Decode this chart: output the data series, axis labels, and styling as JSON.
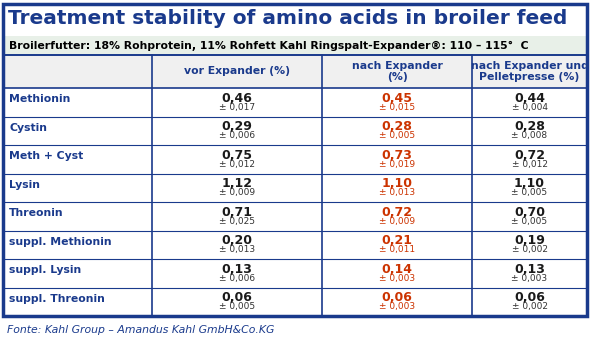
{
  "title": "Treatment stability of amino acids in broiler feed",
  "subtitle": "Broilerfutter: 18% Rohprotein, 11% Rohfett Kahl Ringspalt-Expander®: 110 – 115°  C",
  "footer": "Fonte: Kahl Group – Amandus Kahl GmbH&Co.KG",
  "col_headers": [
    "",
    "vor Expander (%)",
    "nach Expander\n(%)",
    "nach Expander und\nPelletpresse (%)"
  ],
  "rows": [
    {
      "label": "Methionin",
      "v1": "0,46",
      "e1": "± 0,017",
      "v2": "0,45",
      "e2": "± 0,015",
      "v3": "0,44",
      "e3": "± 0,004"
    },
    {
      "label": "Cystin",
      "v1": "0,29",
      "e1": "± 0,006",
      "v2": "0,28",
      "e2": "± 0,005",
      "v3": "0,28",
      "e3": "± 0,008"
    },
    {
      "label": "Meth + Cyst",
      "v1": "0,75",
      "e1": "± 0,012",
      "v2": "0,73",
      "e2": "± 0,019",
      "v3": "0,72",
      "e3": "± 0,012"
    },
    {
      "label": "Lysin",
      "v1": "1,12",
      "e1": "± 0,009",
      "v2": "1,10",
      "e2": "± 0,013",
      "v3": "1,10",
      "e3": "± 0,005"
    },
    {
      "label": "Threonin",
      "v1": "0,71",
      "e1": "± 0,025",
      "v2": "0,72",
      "e2": "± 0,009",
      "v3": "0,70",
      "e3": "± 0,005"
    },
    {
      "label": "suppl. Methionin",
      "v1": "0,20",
      "e1": "± 0,013",
      "v2": "0,21",
      "e2": "± 0,011",
      "v3": "0,19",
      "e3": "± 0,002"
    },
    {
      "label": "suppl. Lysin",
      "v1": "0,13",
      "e1": "± 0,006",
      "v2": "0,14",
      "e2": "± 0,003",
      "v3": "0,13",
      "e3": "± 0,003"
    },
    {
      "label": "suppl. Threonin",
      "v1": "0,06",
      "e1": "± 0,005",
      "v2": "0,06",
      "e2": "± 0,003",
      "v3": "0,06",
      "e3": "± 0,002"
    }
  ],
  "title_color": "#1a3a8c",
  "subtitle_bg": "#e8f0e8",
  "row_label_color": "#1a3a8c",
  "col1_value_color": "#1a1a1a",
  "col2_value_color": "#cc3300",
  "col3_value_color": "#1a1a1a",
  "header_color": "#1a3a8c",
  "border_color": "#1a3a8c",
  "footer_color": "#1a3a8c",
  "col_header_bg": "#f0f0f0",
  "subtitle_text_color": "#000000"
}
